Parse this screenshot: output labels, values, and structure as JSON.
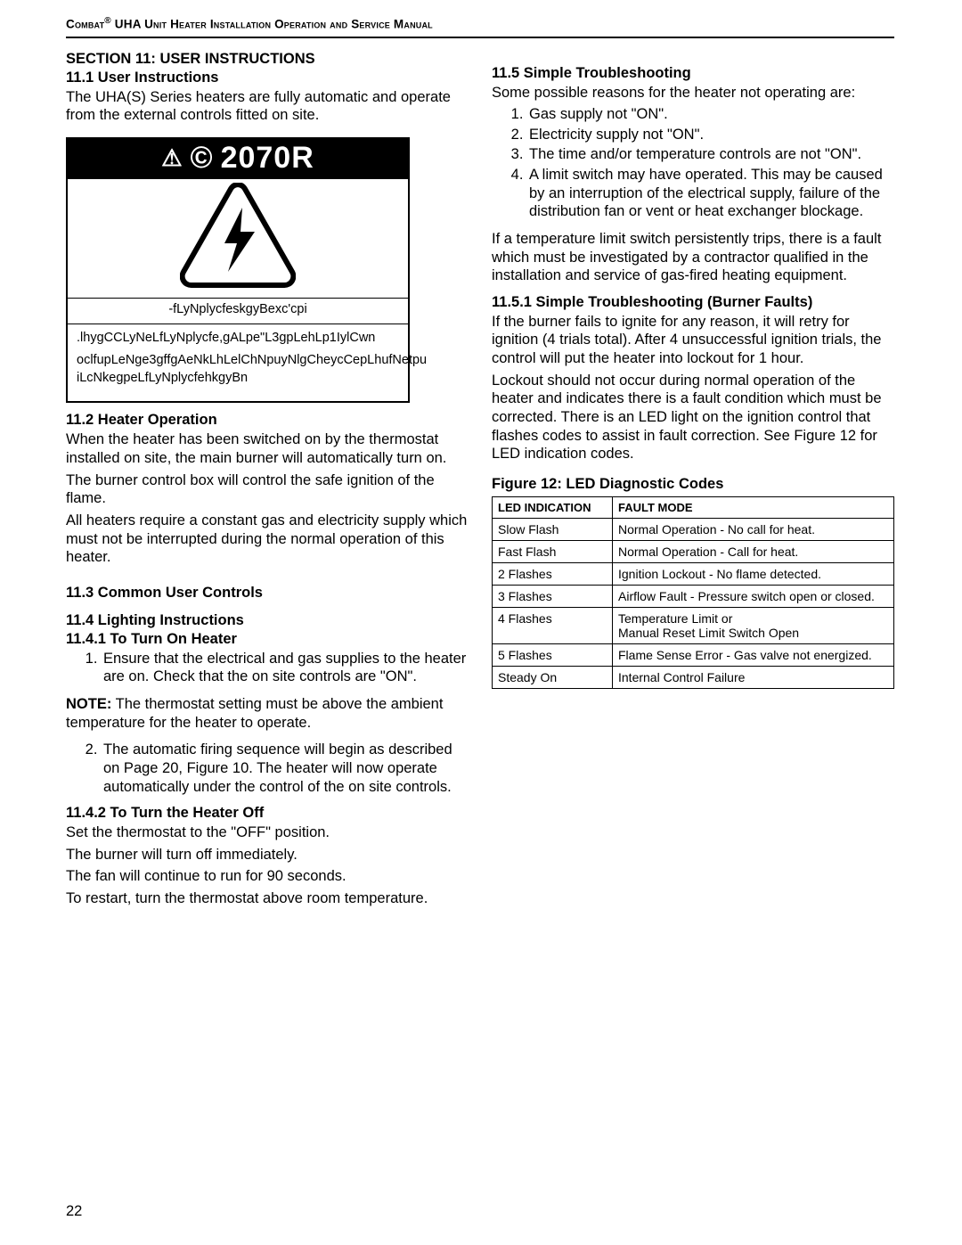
{
  "header": {
    "brand": "Combat",
    "rest": " UHA Unit Heater Installation Operation and Service Manual"
  },
  "pageNumber": "22",
  "left": {
    "sectionTitle": "SECTION 11: USER INSTRUCTIONS",
    "s11_1_h": "11.1 User Instructions",
    "s11_1_p": "The UHA(S) Series heaters are fully automatic and operate from the external controls fitted on site.",
    "warning": {
      "bannerCode": "2070R",
      "caption": "-fLyNplycfeskgyBexc'cpi",
      "line1": ".lhygCCLyNeLfLyNplycfe,gALpe\"L3gpLehLp1IylCwn",
      "line2": "oclfupLeNge3gffgAeNkLhLelChNpuyNlgCheycCepLhufNetpu iLcNkegpeLfLyNplycfehkgyBn"
    },
    "s11_2_h": "11.2 Heater Operation",
    "s11_2_p1": "When the heater has been switched on by the thermostat installed on site, the main burner will automatically turn on.",
    "s11_2_p2": "The burner control box will control the safe ignition of the flame.",
    "s11_2_p3": "All heaters require a constant gas and electricity supply which must not be interrupted during the normal operation of this heater.",
    "s11_3_h": "11.3 Common User Controls",
    "s11_4_h": "11.4 Lighting Instructions",
    "s11_4_1_h": "11.4.1 To Turn On Heater",
    "s11_4_1_li1": "Ensure that the electrical and gas supplies to the heater are on. Check that the on site controls are \"ON\".",
    "noteLabel": "NOTE:",
    "noteText": " The thermostat setting must be above the ambient temperature for the heater to operate.",
    "s11_4_1_li2": "The automatic firing sequence will begin as described on Page 20, Figure 10. The heater will now operate automatically under the control of the on site controls.",
    "s11_4_2_h": "11.4.2 To Turn the Heater Off",
    "s11_4_2_p1": "Set the thermostat to the \"OFF\" position.",
    "s11_4_2_p2": "The burner will turn off immediately.",
    "s11_4_2_p3": "The fan will continue to run for 90 seconds.",
    "s11_4_2_p4": "To restart, turn the thermostat above room temperature."
  },
  "right": {
    "s11_5_h": "11.5 Simple Troubleshooting",
    "s11_5_p": "Some possible reasons for the heater not operating are:",
    "s11_5_li1": "Gas supply not \"ON\".",
    "s11_5_li2": "Electricity supply not \"ON\".",
    "s11_5_li3": "The time and/or temperature controls are not \"ON\".",
    "s11_5_li4": "A limit switch may have operated. This may be caused by an interruption of the electrical supply, failure of the distribution fan or vent or heat exchanger blockage.",
    "s11_5_p2": "If a temperature limit switch persistently trips, there is a fault which must be investigated by a contractor qualified in the installation and service of gas-fired heating equipment.",
    "s11_5_1_h": "11.5.1 Simple Troubleshooting (Burner Faults)",
    "s11_5_1_p1": "If the burner fails to ignite for any reason, it will retry for ignition (4 trials total). After 4 unsuccessful ignition trials, the control will put the heater into lockout for 1 hour.",
    "s11_5_1_p2": "Lockout should not occur during normal operation of the heater and indicates there is a fault condition which must be corrected. There is an LED light on the ignition control that flashes codes to assist in fault correction. See Figure 12 for LED indication codes.",
    "figTitle": "Figure 12: LED Diagnostic Codes",
    "table": {
      "h1": "LED INDICATION",
      "h2": "FAULT MODE",
      "rows": [
        [
          "Slow Flash",
          "Normal Operation - No call for heat."
        ],
        [
          "Fast Flash",
          "Normal Operation - Call for heat."
        ],
        [
          "2 Flashes",
          "Ignition Lockout - No flame detected."
        ],
        [
          "3 Flashes",
          "Airflow Fault - Pressure switch open or closed."
        ],
        [
          "4 Flashes",
          "Temperature Limit or\nManual Reset Limit Switch Open"
        ],
        [
          "5 Flashes",
          "Flame Sense Error - Gas valve not energized."
        ],
        [
          "Steady On",
          "Internal Control Failure"
        ]
      ]
    }
  }
}
